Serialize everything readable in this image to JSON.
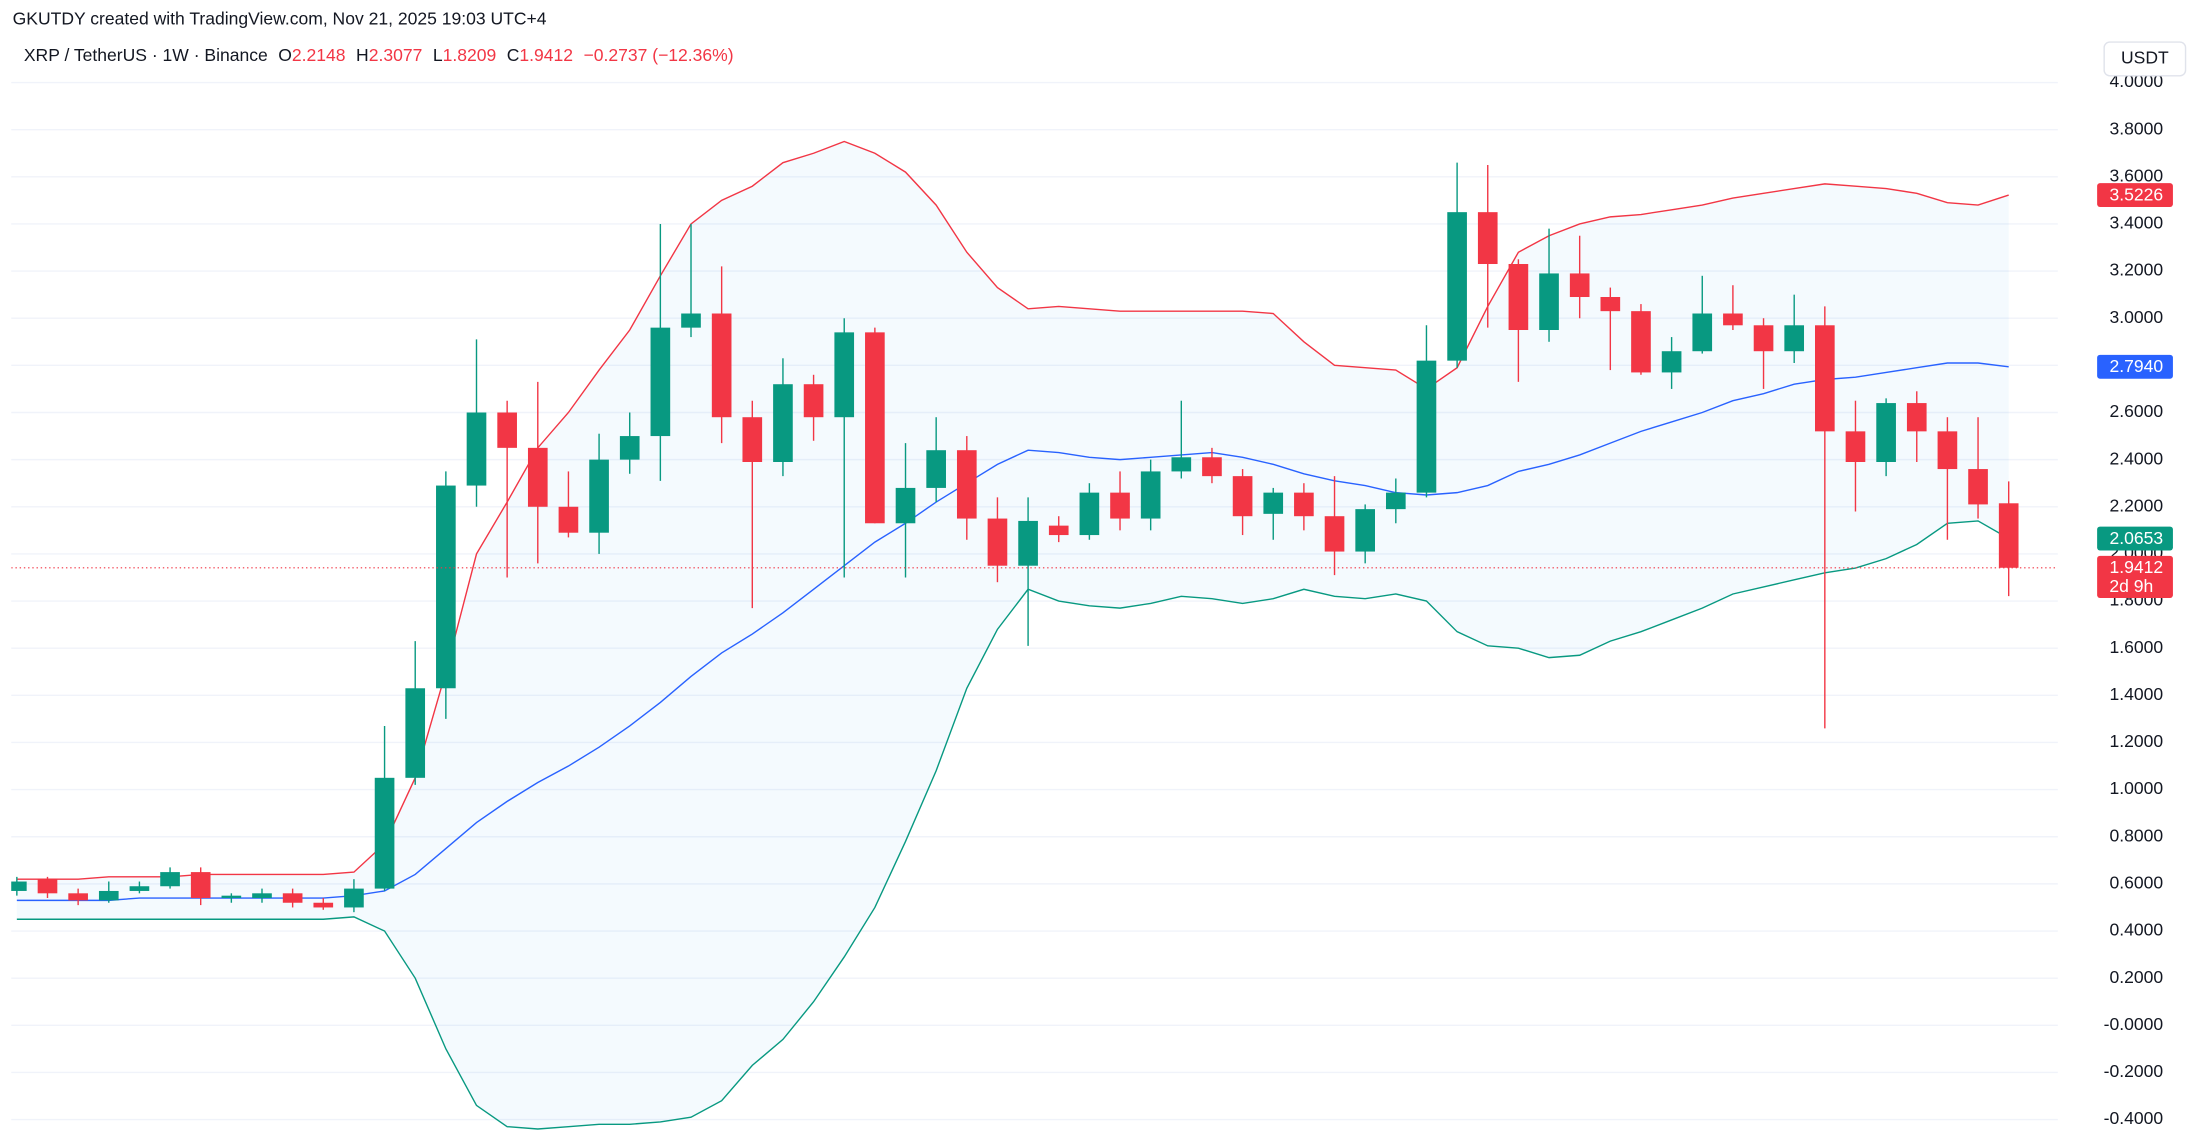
{
  "chart_data": {
    "type": "candlestick",
    "header": "GKUTDY created with TradingView.com, Nov 21, 2025 19:03 UTC+4",
    "legend": {
      "symbol": "XRP / TetherUS · 1W · Binance",
      "o_label": "O",
      "open": 2.2148,
      "h_label": "H",
      "high": 2.3077,
      "l_label": "L",
      "low": 1.8209,
      "c_label": "C",
      "close": 1.9412,
      "change": "−0.2737 (−12.36%)"
    },
    "currency": "USDT",
    "up_color": "#089981",
    "down_color": "#f23645",
    "candles": {
      "open": [
        0.57,
        0.62,
        0.56,
        0.53,
        0.57,
        0.59,
        0.65,
        0.54,
        0.54,
        0.56,
        0.52,
        0.5,
        0.58,
        1.05,
        1.43,
        2.29,
        2.6,
        2.45,
        2.2,
        2.09,
        2.4,
        2.5,
        2.96,
        3.02,
        2.58,
        2.39,
        2.72,
        2.58,
        2.94,
        2.13,
        2.28,
        2.44,
        2.15,
        1.95,
        2.12,
        2.08,
        2.26,
        2.15,
        2.35,
        2.41,
        2.33,
        2.17,
        2.26,
        2.16,
        2.01,
        2.19,
        2.26,
        2.82,
        3.45,
        3.23,
        2.95,
        3.19,
        3.09,
        3.03,
        2.77,
        2.86,
        3.02,
        2.97,
        2.86,
        2.97,
        2.52,
        2.39,
        2.64,
        2.52,
        2.36,
        2.2148
      ],
      "high": [
        0.63,
        0.63,
        0.58,
        0.61,
        0.61,
        0.67,
        0.67,
        0.56,
        0.58,
        0.58,
        0.54,
        0.62,
        1.27,
        1.63,
        2.35,
        2.91,
        2.65,
        2.73,
        2.35,
        2.51,
        2.6,
        3.4,
        3.4,
        3.22,
        2.65,
        2.83,
        2.76,
        3.0,
        2.96,
        2.47,
        2.58,
        2.5,
        2.24,
        2.24,
        2.16,
        2.3,
        2.35,
        2.4,
        2.65,
        2.45,
        2.36,
        2.28,
        2.3,
        2.33,
        2.21,
        2.32,
        2.97,
        3.66,
        3.65,
        3.25,
        3.38,
        3.35,
        3.13,
        3.06,
        2.92,
        3.18,
        3.14,
        3.0,
        3.1,
        3.05,
        2.65,
        2.66,
        2.69,
        2.58,
        2.58,
        2.3077
      ],
      "low": [
        0.55,
        0.54,
        0.51,
        0.52,
        0.56,
        0.58,
        0.51,
        0.52,
        0.52,
        0.5,
        0.49,
        0.48,
        0.57,
        1.02,
        1.3,
        2.2,
        1.9,
        1.96,
        2.07,
        2.0,
        2.34,
        2.31,
        2.92,
        2.47,
        1.77,
        2.33,
        2.48,
        1.9,
        2.13,
        1.9,
        2.22,
        2.06,
        1.88,
        1.61,
        2.05,
        2.06,
        2.1,
        2.1,
        2.32,
        2.3,
        2.08,
        2.06,
        2.1,
        1.91,
        1.96,
        2.13,
        2.24,
        2.79,
        2.96,
        2.73,
        2.9,
        3.0,
        2.78,
        2.76,
        2.7,
        2.85,
        2.95,
        2.7,
        2.81,
        1.26,
        2.18,
        2.33,
        2.39,
        2.06,
        2.15,
        1.8209
      ],
      "close": [
        0.61,
        0.56,
        0.53,
        0.57,
        0.59,
        0.65,
        0.54,
        0.55,
        0.56,
        0.52,
        0.5,
        0.58,
        1.05,
        1.43,
        2.29,
        2.6,
        2.45,
        2.2,
        2.09,
        2.4,
        2.5,
        2.96,
        3.02,
        2.58,
        2.39,
        2.72,
        2.58,
        2.94,
        2.13,
        2.28,
        2.44,
        2.15,
        1.95,
        2.14,
        2.08,
        2.26,
        2.15,
        2.35,
        2.41,
        2.33,
        2.16,
        2.26,
        2.16,
        2.01,
        2.19,
        2.26,
        2.82,
        3.45,
        3.23,
        2.95,
        3.19,
        3.09,
        3.03,
        2.77,
        2.86,
        3.02,
        2.97,
        2.86,
        2.97,
        2.52,
        2.39,
        2.64,
        2.52,
        2.36,
        2.21,
        1.9412
      ]
    },
    "bands": {
      "upper": {
        "color": "#f23645",
        "values": [
          0.62,
          0.62,
          0.62,
          0.63,
          0.63,
          0.63,
          0.64,
          0.64,
          0.64,
          0.64,
          0.64,
          0.65,
          0.77,
          1.05,
          1.5,
          2.0,
          2.22,
          2.45,
          2.6,
          2.78,
          2.95,
          3.18,
          3.4,
          3.5,
          3.56,
          3.66,
          3.7,
          3.75,
          3.7,
          3.62,
          3.48,
          3.28,
          3.13,
          3.04,
          3.05,
          3.04,
          3.03,
          3.03,
          3.03,
          3.03,
          3.03,
          3.02,
          2.9,
          2.8,
          2.79,
          2.78,
          2.7,
          2.79,
          3.05,
          3.28,
          3.35,
          3.4,
          3.43,
          3.44,
          3.46,
          3.48,
          3.51,
          3.53,
          3.55,
          3.57,
          3.56,
          3.55,
          3.53,
          3.49,
          3.48,
          3.5226
        ]
      },
      "middle": {
        "color": "#2962ff",
        "values": [
          0.53,
          0.53,
          0.53,
          0.53,
          0.54,
          0.54,
          0.54,
          0.54,
          0.54,
          0.54,
          0.54,
          0.55,
          0.57,
          0.64,
          0.75,
          0.86,
          0.95,
          1.03,
          1.1,
          1.18,
          1.27,
          1.37,
          1.48,
          1.58,
          1.66,
          1.75,
          1.85,
          1.95,
          2.05,
          2.13,
          2.22,
          2.3,
          2.38,
          2.44,
          2.43,
          2.41,
          2.4,
          2.41,
          2.42,
          2.43,
          2.41,
          2.38,
          2.34,
          2.31,
          2.29,
          2.26,
          2.25,
          2.26,
          2.29,
          2.35,
          2.38,
          2.42,
          2.47,
          2.52,
          2.56,
          2.6,
          2.65,
          2.68,
          2.72,
          2.74,
          2.75,
          2.77,
          2.79,
          2.81,
          2.81,
          2.794
        ]
      },
      "lower": {
        "color": "#089981",
        "values": [
          0.45,
          0.45,
          0.45,
          0.45,
          0.45,
          0.45,
          0.45,
          0.45,
          0.45,
          0.45,
          0.45,
          0.46,
          0.4,
          0.2,
          -0.1,
          -0.34,
          -0.43,
          -0.44,
          -0.43,
          -0.42,
          -0.42,
          -0.41,
          -0.39,
          -0.32,
          -0.17,
          -0.06,
          0.1,
          0.29,
          0.5,
          0.78,
          1.08,
          1.43,
          1.68,
          1.85,
          1.8,
          1.78,
          1.77,
          1.79,
          1.82,
          1.81,
          1.79,
          1.81,
          1.85,
          1.82,
          1.81,
          1.83,
          1.8,
          1.67,
          1.61,
          1.6,
          1.56,
          1.57,
          1.63,
          1.67,
          1.72,
          1.77,
          1.83,
          1.86,
          1.89,
          1.92,
          1.94,
          1.98,
          2.04,
          2.13,
          2.14,
          2.0653
        ]
      },
      "fill": "#2196f3"
    },
    "ylim": [
      -0.4824,
      4.1834
    ],
    "yticks": [
      {
        "value": 4,
        "label": "4.0000"
      },
      {
        "value": 3.8,
        "label": "3.8000"
      },
      {
        "value": 3.6,
        "label": "3.6000"
      },
      {
        "value": 3.4,
        "label": "3.4000"
      },
      {
        "value": 3.2,
        "label": "3.2000"
      },
      {
        "value": 3,
        "label": "3.0000"
      },
      {
        "value": 2.8,
        "label": "2.8000"
      },
      {
        "value": 2.6,
        "label": "2.6000"
      },
      {
        "value": 2.4,
        "label": "2.4000"
      },
      {
        "value": 2.2,
        "label": "2.2000"
      },
      {
        "value": 2,
        "label": "2.0000"
      },
      {
        "value": 1.8,
        "label": "1.8000"
      },
      {
        "value": 1.6,
        "label": "1.6000"
      },
      {
        "value": 1.4,
        "label": "1.4000"
      },
      {
        "value": 1.2,
        "label": "1.2000"
      },
      {
        "value": 1,
        "label": "1.0000"
      },
      {
        "value": 0.8,
        "label": "0.8000"
      },
      {
        "value": 0.6,
        "label": "0.6000"
      },
      {
        "value": 0.4,
        "label": "0.4000"
      },
      {
        "value": 0.2,
        "label": "0.2000"
      },
      {
        "value": 0,
        "label": "-0.0000"
      },
      {
        "value": -0.2,
        "label": "-0.2000"
      },
      {
        "value": -0.4,
        "label": "-0.4000"
      }
    ],
    "grid": true,
    "price_tags": [
      {
        "value": 3.5226,
        "label": "3.5226",
        "color": "#f23645"
      },
      {
        "value": 2.794,
        "label": "2.7940",
        "color": "#2962ff"
      },
      {
        "value": 2.0653,
        "label": "2.0653",
        "color": "#089981"
      },
      {
        "value": 1.9412,
        "label": "1.9412",
        "color": "#f23645"
      }
    ],
    "countdown": "2d 9h"
  }
}
